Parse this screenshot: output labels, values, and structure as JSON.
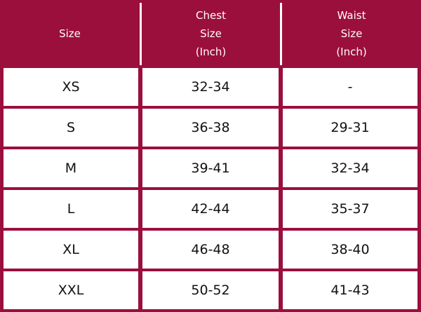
{
  "table": {
    "header": [
      [
        "Size"
      ],
      [
        "Chest",
        "Size",
        "(Inch)"
      ],
      [
        "Waist",
        "Size",
        "(Inch)"
      ]
    ],
    "rows": [
      [
        "XS",
        "32-34",
        "-"
      ],
      [
        "S",
        "36-38",
        "29-31"
      ],
      [
        "M",
        "39-41",
        "32-34"
      ],
      [
        "L",
        "42-44",
        "35-37"
      ],
      [
        "XL",
        "46-48",
        "38-40"
      ],
      [
        "XXL",
        "50-52",
        "41-43"
      ]
    ]
  }
}
